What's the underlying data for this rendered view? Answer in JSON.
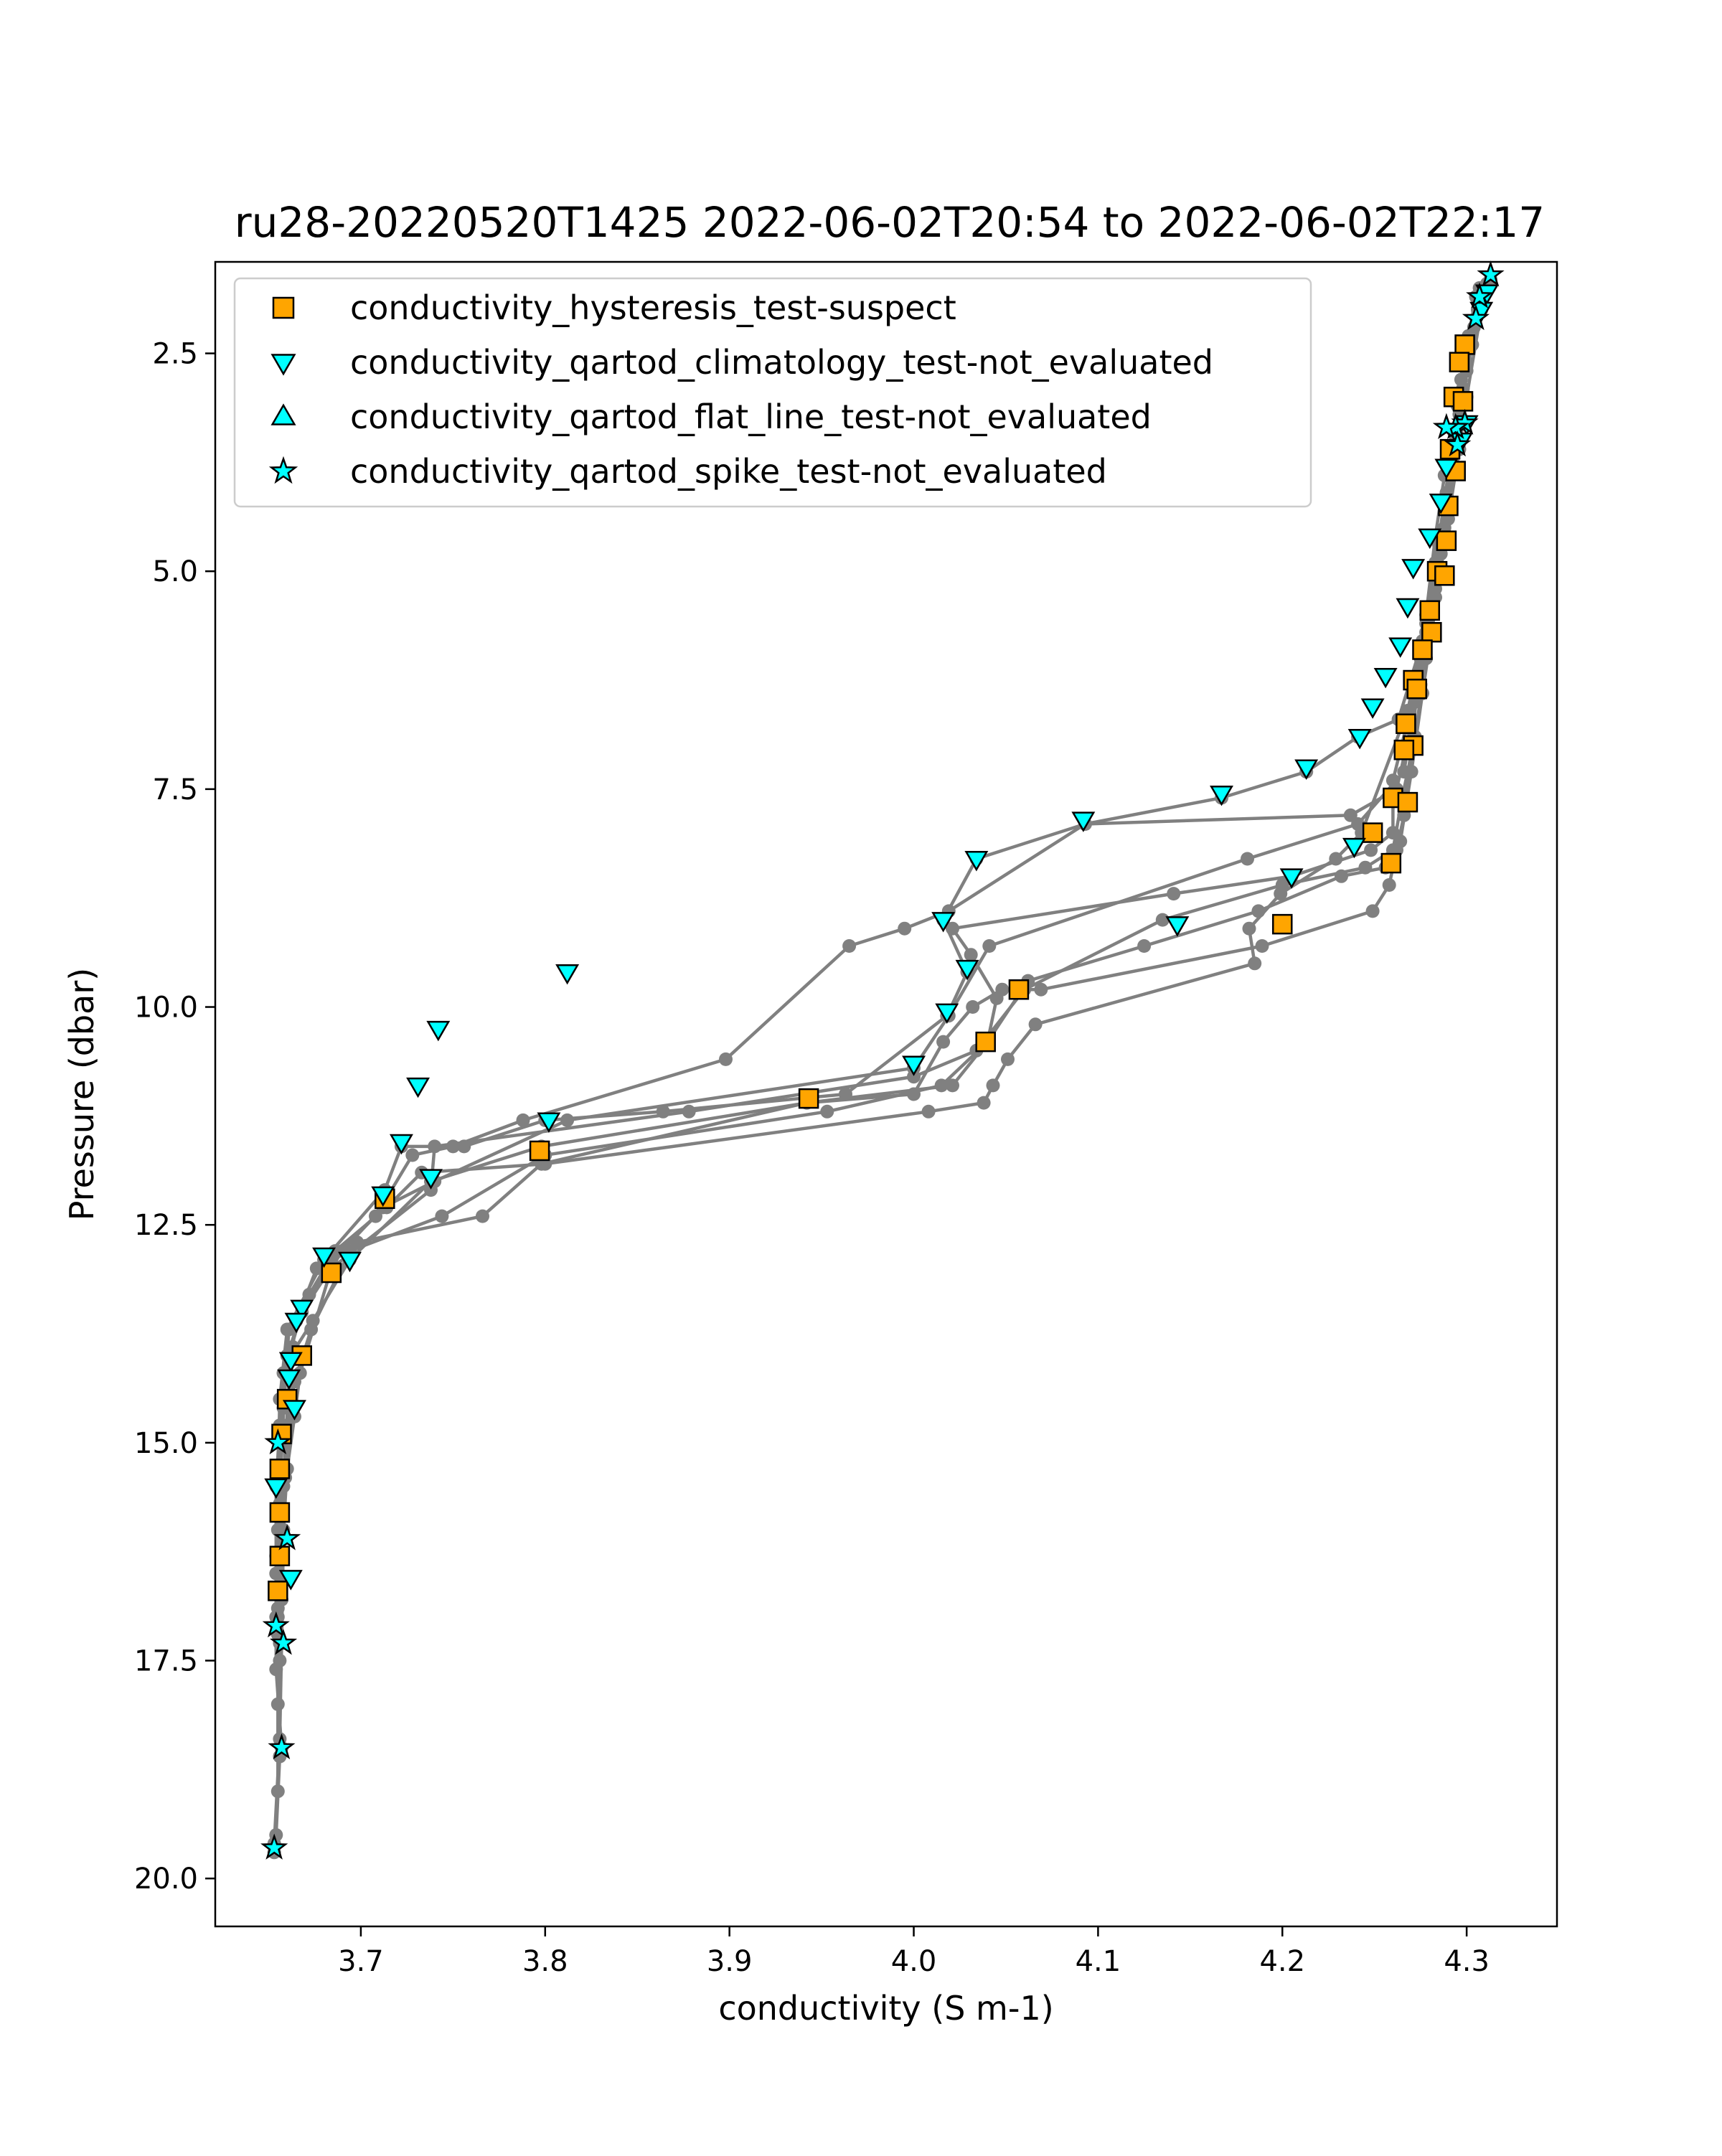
{
  "chart_data": {
    "type": "scatter",
    "title": "ru28-20220520T1425 2022-06-02T20:54 to 2022-06-02T22:17",
    "xlabel": "conductivity (S m-1)",
    "ylabel": "Pressure (dbar)",
    "xlim": [
      3.621,
      4.349
    ],
    "ylim": [
      20.55,
      1.45
    ],
    "y_inverted": true,
    "grid": false,
    "legend_position": "upper-left",
    "x_ticks": [
      3.7,
      3.8,
      3.9,
      4.0,
      4.1,
      4.2,
      4.3
    ],
    "x_tick_labels": [
      "3.7",
      "3.8",
      "3.9",
      "4.0",
      "4.1",
      "4.2",
      "4.3"
    ],
    "y_ticks": [
      2.5,
      5.0,
      7.5,
      10.0,
      12.5,
      15.0,
      17.5,
      20.0
    ],
    "y_tick_labels": [
      "2.5",
      "5.0",
      "7.5",
      "10.0",
      "12.5",
      "15.0",
      "17.5",
      "20.0"
    ],
    "profile_color": "#808080",
    "profiles": [
      [
        [
          4.313,
          1.65
        ],
        [
          4.305,
          1.85
        ],
        [
          4.301,
          2.3
        ],
        [
          4.297,
          2.8
        ],
        [
          4.293,
          3.4
        ],
        [
          4.289,
          4.1
        ],
        [
          4.284,
          4.9
        ],
        [
          4.278,
          5.7
        ],
        [
          4.272,
          6.5
        ],
        [
          4.266,
          7.3
        ],
        [
          4.241,
          7.9
        ],
        [
          4.181,
          8.3
        ],
        [
          4.041,
          9.3
        ],
        [
          4.019,
          10.1
        ],
        [
          4.0,
          10.7
        ],
        [
          3.812,
          11.3
        ],
        [
          3.74,
          12.0
        ],
        [
          3.712,
          12.3
        ],
        [
          3.69,
          12.8
        ],
        [
          3.668,
          13.5
        ],
        [
          3.66,
          14.0
        ],
        [
          3.657,
          15.0
        ],
        [
          3.655,
          16.0
        ],
        [
          3.655,
          17.0
        ],
        [
          3.655,
          18.0
        ],
        [
          3.655,
          19.0
        ],
        [
          3.653,
          19.7
        ]
      ],
      [
        [
          3.653,
          19.6
        ],
        [
          3.656,
          18.4
        ],
        [
          3.657,
          17.3
        ],
        [
          3.658,
          16.1
        ],
        [
          3.659,
          15.0
        ],
        [
          3.662,
          14.0
        ],
        [
          3.674,
          13.6
        ],
        [
          3.694,
          12.9
        ],
        [
          3.738,
          12.0
        ],
        [
          3.798,
          11.6
        ],
        [
          3.942,
          11.1
        ],
        [
          4.021,
          10.9
        ],
        [
          4.04,
          10.4
        ],
        [
          4.045,
          9.9
        ],
        [
          4.031,
          9.4
        ],
        [
          4.021,
          9.1
        ],
        [
          4.141,
          8.7
        ],
        [
          4.205,
          8.5
        ],
        [
          4.248,
          8.2
        ],
        [
          4.26,
          8.0
        ],
        [
          4.26,
          7.4
        ],
        [
          4.267,
          6.8
        ],
        [
          4.275,
          6.0
        ],
        [
          4.28,
          5.4
        ],
        [
          4.286,
          4.8
        ],
        [
          4.29,
          4.2
        ],
        [
          4.294,
          3.5
        ],
        [
          4.3,
          2.7
        ],
        [
          4.306,
          2.0
        ]
      ],
      [
        [
          4.307,
          1.75
        ],
        [
          4.3,
          2.6
        ],
        [
          4.296,
          3.6
        ],
        [
          4.29,
          4.4
        ],
        [
          4.283,
          5.3
        ],
        [
          4.275,
          6.3
        ],
        [
          4.262,
          7.5
        ],
        [
          4.237,
          7.8
        ],
        [
          4.093,
          7.9
        ],
        [
          4.034,
          8.3
        ],
        [
          4.016,
          9.0
        ],
        [
          4.029,
          9.6
        ],
        [
          4.018,
          10.1
        ],
        [
          3.963,
          11.0
        ],
        [
          3.864,
          11.2
        ],
        [
          3.8,
          11.3
        ],
        [
          3.756,
          11.6
        ],
        [
          3.722,
          11.6
        ],
        [
          3.713,
          12.1
        ],
        [
          3.68,
          12.9
        ],
        [
          3.66,
          13.7
        ],
        [
          3.656,
          14.5
        ],
        [
          3.655,
          15.5
        ],
        [
          3.654,
          16.5
        ],
        [
          3.654,
          17.6
        ],
        [
          3.657,
          18.5
        ]
      ],
      [
        [
          3.654,
          19.5
        ],
        [
          3.656,
          18.6
        ],
        [
          3.656,
          17.5
        ],
        [
          3.657,
          16.8
        ],
        [
          3.658,
          16.0
        ],
        [
          3.66,
          15.3
        ],
        [
          3.664,
          14.7
        ],
        [
          3.667,
          14.2
        ],
        [
          3.684,
          13.0
        ],
        [
          3.738,
          12.1
        ],
        [
          3.74,
          11.6
        ],
        [
          3.878,
          11.2
        ],
        [
          4.0,
          10.8
        ],
        [
          4.034,
          10.5
        ],
        [
          4.06,
          9.8
        ],
        [
          4.135,
          9.0
        ],
        [
          4.2,
          8.6
        ],
        [
          4.245,
          8.4
        ],
        [
          4.26,
          8.2
        ],
        [
          4.265,
          7.6
        ],
        [
          4.272,
          6.9
        ],
        [
          4.278,
          6.0
        ],
        [
          4.283,
          5.2
        ],
        [
          4.288,
          4.5
        ],
        [
          4.292,
          3.9
        ],
        [
          4.297,
          3.0
        ],
        [
          4.304,
          2.2
        ],
        [
          4.311,
          1.7
        ]
      ],
      [
        [
          4.311,
          1.75
        ],
        [
          4.303,
          2.4
        ],
        [
          4.296,
          3.2
        ],
        [
          4.29,
          3.9
        ],
        [
          4.283,
          4.9
        ],
        [
          4.276,
          5.8
        ],
        [
          4.263,
          6.7
        ],
        [
          4.241,
          6.9
        ],
        [
          4.213,
          7.3
        ],
        [
          4.167,
          7.6
        ],
        [
          4.093,
          7.9
        ],
        [
          4.019,
          8.9
        ],
        [
          3.995,
          9.1
        ],
        [
          3.965,
          9.3
        ],
        [
          3.898,
          10.6
        ],
        [
          3.788,
          11.3
        ],
        [
          3.75,
          11.6
        ],
        [
          3.728,
          11.7
        ],
        [
          3.708,
          12.4
        ],
        [
          3.684,
          12.9
        ],
        [
          3.668,
          13.5
        ],
        [
          3.658,
          14.2
        ],
        [
          3.656,
          14.8
        ],
        [
          3.654,
          15.5
        ],
        [
          3.654,
          16.3
        ],
        [
          3.654,
          17.0
        ]
      ],
      [
        [
          3.655,
          17.2
        ],
        [
          3.657,
          16.3
        ],
        [
          3.658,
          15.5
        ],
        [
          3.66,
          14.8
        ],
        [
          3.664,
          14.3
        ],
        [
          3.673,
          13.7
        ],
        [
          3.694,
          12.8
        ],
        [
          3.744,
          12.4
        ],
        [
          3.8,
          11.7
        ],
        [
          3.953,
          11.2
        ],
        [
          4.015,
          10.9
        ],
        [
          4.04,
          10.4
        ],
        [
          4.062,
          9.7
        ],
        [
          4.125,
          9.3
        ],
        [
          4.187,
          8.9
        ],
        [
          4.232,
          8.5
        ],
        [
          4.256,
          8.4
        ],
        [
          4.264,
          8.1
        ],
        [
          4.27,
          7.3
        ],
        [
          4.276,
          6.4
        ],
        [
          4.281,
          5.7
        ],
        [
          4.286,
          5.0
        ],
        [
          4.29,
          4.3
        ],
        [
          4.296,
          3.6
        ],
        [
          4.3,
          3.0
        ],
        [
          4.308,
          2.0
        ]
      ],
      [
        [
          4.308,
          1.9
        ],
        [
          4.298,
          2.9
        ],
        [
          4.291,
          3.7
        ],
        [
          4.285,
          4.7
        ],
        [
          4.278,
          5.6
        ],
        [
          4.268,
          6.6
        ],
        [
          4.243,
          8.0
        ],
        [
          4.229,
          8.3
        ],
        [
          4.199,
          8.7
        ],
        [
          4.182,
          9.1
        ],
        [
          4.185,
          9.5
        ],
        [
          4.066,
          10.2
        ],
        [
          4.051,
          10.6
        ],
        [
          4.043,
          10.9
        ],
        [
          4.038,
          11.1
        ],
        [
          4.008,
          11.2
        ],
        [
          3.8,
          11.8
        ],
        [
          3.733,
          11.9
        ],
        [
          3.714,
          12.3
        ],
        [
          3.686,
          12.8
        ],
        [
          3.672,
          13.3
        ],
        [
          3.661,
          13.7
        ],
        [
          3.658,
          14.6
        ],
        [
          3.656,
          15.7
        ],
        [
          3.655,
          16.9
        ]
      ],
      [
        [
          3.656,
          17.3
        ],
        [
          3.657,
          16.6
        ],
        [
          3.659,
          15.4
        ],
        [
          3.661,
          14.6
        ],
        [
          3.663,
          13.9
        ],
        [
          3.665,
          13.6
        ],
        [
          3.676,
          13.0
        ],
        [
          3.698,
          12.7
        ],
        [
          3.766,
          12.4
        ],
        [
          3.798,
          11.8
        ],
        [
          3.942,
          11.1
        ],
        [
          4.0,
          11.0
        ],
        [
          4.016,
          10.4
        ],
        [
          4.032,
          10.0
        ],
        [
          4.048,
          9.8
        ],
        [
          4.069,
          9.8
        ],
        [
          4.189,
          9.3
        ],
        [
          4.249,
          8.9
        ],
        [
          4.258,
          8.6
        ],
        [
          4.262,
          8.2
        ],
        [
          4.266,
          7.8
        ],
        [
          4.27,
          7.0
        ],
        [
          4.274,
          6.2
        ],
        [
          4.278,
          5.5
        ],
        [
          4.283,
          4.6
        ],
        [
          4.288,
          3.9
        ],
        [
          4.295,
          3.1
        ],
        [
          4.303,
          2.4
        ],
        [
          4.312,
          1.7
        ]
      ]
    ],
    "series": [
      {
        "name": "conductivity_hysteresis_test-suspect",
        "marker": "square",
        "color": "#ffa500",
        "points": [
          [
            4.299,
            2.4
          ],
          [
            4.296,
            2.6
          ],
          [
            4.293,
            3.0
          ],
          [
            4.298,
            3.05
          ],
          [
            4.291,
            3.6
          ],
          [
            4.294,
            3.85
          ],
          [
            4.29,
            4.25
          ],
          [
            4.289,
            4.65
          ],
          [
            4.284,
            5.0
          ],
          [
            4.288,
            5.05
          ],
          [
            4.28,
            5.45
          ],
          [
            4.281,
            5.7
          ],
          [
            4.276,
            5.9
          ],
          [
            4.271,
            6.25
          ],
          [
            4.273,
            6.35
          ],
          [
            4.267,
            6.75
          ],
          [
            4.271,
            7.0
          ],
          [
            4.266,
            7.05
          ],
          [
            4.26,
            7.6
          ],
          [
            4.268,
            7.65
          ],
          [
            4.249,
            8.0
          ],
          [
            4.259,
            8.35
          ],
          [
            4.2,
            9.05
          ],
          [
            4.057,
            9.8
          ],
          [
            4.039,
            10.4
          ],
          [
            3.943,
            11.05
          ],
          [
            3.797,
            11.65
          ],
          [
            3.713,
            12.2
          ],
          [
            3.684,
            13.05
          ],
          [
            3.668,
            14.0
          ],
          [
            3.66,
            14.5
          ],
          [
            3.657,
            14.9
          ],
          [
            3.656,
            15.3
          ],
          [
            3.656,
            15.8
          ],
          [
            3.656,
            16.3
          ],
          [
            3.655,
            16.7
          ]
        ]
      },
      {
        "name": "conductivity_qartod_climatology_test-not_evaluated",
        "marker": "triangle-down",
        "color": "#00ffff",
        "points": [
          [
            4.311,
            1.8
          ],
          [
            4.308,
            2.0
          ],
          [
            4.3,
            3.3
          ],
          [
            4.297,
            3.5
          ],
          [
            4.289,
            3.8
          ],
          [
            4.286,
            4.2
          ],
          [
            4.28,
            4.6
          ],
          [
            4.271,
            4.95
          ],
          [
            4.268,
            5.4
          ],
          [
            4.264,
            5.85
          ],
          [
            4.256,
            6.2
          ],
          [
            4.249,
            6.55
          ],
          [
            4.242,
            6.9
          ],
          [
            4.213,
            7.25
          ],
          [
            4.167,
            7.55
          ],
          [
            4.092,
            7.85
          ],
          [
            4.034,
            8.3
          ],
          [
            4.016,
            9.0
          ],
          [
            4.029,
            9.55
          ],
          [
            4.018,
            10.05
          ],
          [
            4.0,
            10.65
          ],
          [
            3.812,
            9.6
          ],
          [
            3.742,
            10.25
          ],
          [
            3.731,
            10.9
          ],
          [
            3.722,
            11.55
          ],
          [
            3.738,
            11.95
          ],
          [
            3.712,
            12.15
          ],
          [
            3.694,
            12.9
          ],
          [
            3.68,
            12.85
          ],
          [
            3.668,
            13.45
          ],
          [
            3.665,
            13.6
          ],
          [
            3.662,
            14.05
          ],
          [
            3.661,
            14.25
          ],
          [
            3.664,
            14.6
          ],
          [
            3.654,
            15.5
          ],
          [
            3.662,
            16.55
          ],
          [
            3.802,
            11.3
          ],
          [
            4.143,
            9.05
          ],
          [
            4.205,
            8.5
          ],
          [
            4.239,
            8.15
          ]
        ]
      },
      {
        "name": "conductivity_qartod_flat_line_test-not_evaluated",
        "marker": "triangle-up",
        "color": "#00ffff",
        "points": []
      },
      {
        "name": "conductivity_qartod_spike_test-not_evaluated",
        "marker": "star",
        "color": "#00ffff",
        "points": [
          [
            4.313,
            1.6
          ],
          [
            4.307,
            1.85
          ],
          [
            4.305,
            2.1
          ],
          [
            4.299,
            3.3
          ],
          [
            4.294,
            3.35
          ],
          [
            4.289,
            3.35
          ],
          [
            4.295,
            3.55
          ],
          [
            3.655,
            15.0
          ],
          [
            3.66,
            16.1
          ],
          [
            3.654,
            17.1
          ],
          [
            3.658,
            17.3
          ],
          [
            3.657,
            18.5
          ],
          [
            3.653,
            19.65
          ]
        ]
      }
    ]
  }
}
